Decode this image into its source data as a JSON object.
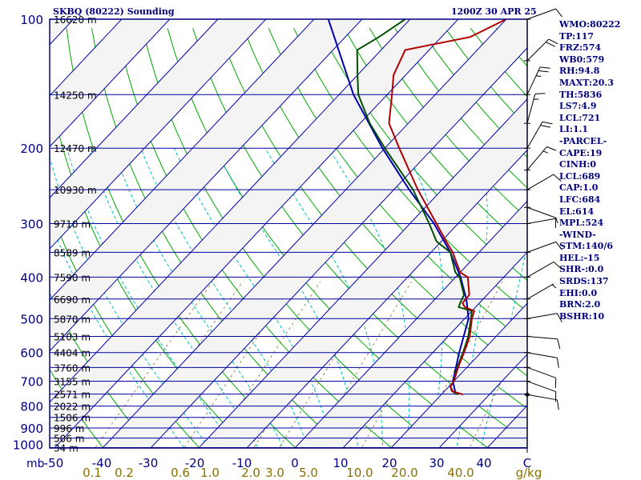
{
  "header": {
    "station": "SKBQ (80222) Sounding",
    "time": "1200Z 30 APR 25"
  },
  "stats": [
    "WMO:80222",
    "TP:117",
    "FRZ:574",
    "WB0:579",
    "RH:94.8",
    "MAXT:20.3",
    "TH:5836",
    "LS7:4.9",
    "LCL:721",
    "LI:1.1",
    "-PARCEL-",
    "CAPE:19",
    "CINH:0",
    "LCL:689",
    "CAP:1.0",
    "LFC:684",
    "EL:614",
    "MPL:524",
    "-WIND-",
    "STM:140/6",
    "HEL:-15",
    "SHR-:0.0",
    "SRDS:137",
    "EHI:0.0",
    "BRN:2.0",
    "BSHR:10"
  ],
  "colors": {
    "frame": "#000080",
    "isobar": "#0000a0",
    "isotherm": "#0000b0",
    "dry_adiabat": "#00aa00",
    "moist_adiabat": "#00c0c0",
    "mixing_ratio": "#9a8a50",
    "temperature": "#b00000",
    "dewpoint": "#005000",
    "parcel": "#0000b0",
    "axis_labels": "#000080",
    "mixing_labels": "#8a7000"
  },
  "chart_data": {
    "type": "line",
    "title": "SKBQ (80222) Sounding",
    "subtitle": "1200Z 30 APR 25",
    "pressure_ticks": [
      "100",
      "200",
      "300",
      "400",
      "500",
      "600",
      "700",
      "800",
      "900",
      "1000"
    ],
    "pressure_unit": "mb",
    "temperature_ticks": [
      "-50",
      "-40",
      "-30",
      "-20",
      "-10",
      "0",
      "10",
      "20",
      "30",
      "40"
    ],
    "temperature_unit": "C",
    "mixing_ratio_ticks": [
      "0.1",
      "0.2",
      "0.6",
      "1.0",
      "2.0",
      "3.0",
      "5.0",
      "10.0",
      "20.0",
      "40.0"
    ],
    "mixing_ratio_unit": "g/kg",
    "height_labels": [
      {
        "p": 100,
        "label": "16620 m"
      },
      {
        "p": 150,
        "label": "14250 m"
      },
      {
        "p": 200,
        "label": "12470 m"
      },
      {
        "p": 250,
        "label": "10930 m"
      },
      {
        "p": 300,
        "label": "9710 m"
      },
      {
        "p": 350,
        "label": "8589 m"
      },
      {
        "p": 400,
        "label": "7590 m"
      },
      {
        "p": 450,
        "label": "6690 m"
      },
      {
        "p": 500,
        "label": "5870 m"
      },
      {
        "p": 550,
        "label": "5103 m"
      },
      {
        "p": 600,
        "label": "4404 m"
      },
      {
        "p": 650,
        "label": "3760 m"
      },
      {
        "p": 700,
        "label": "3155 m"
      },
      {
        "p": 750,
        "label": "2571 m"
      },
      {
        "p": 800,
        "label": "2022 m"
      },
      {
        "p": 850,
        "label": "1506 m"
      },
      {
        "p": 900,
        "label": "996 m"
      },
      {
        "p": 950,
        "label": "506 m"
      },
      {
        "p": 1000,
        "label": "34 m"
      }
    ],
    "temperature_profile": [
      [
        752,
        24.5
      ],
      [
        738,
        21.5
      ],
      [
        720,
        20.3
      ],
      [
        700,
        20.0
      ],
      [
        650,
        18.2
      ],
      [
        600,
        16.5
      ],
      [
        550,
        14.5
      ],
      [
        500,
        11.5
      ],
      [
        480,
        10.5
      ],
      [
        470,
        7.8
      ],
      [
        460,
        6.5
      ],
      [
        440,
        6.3
      ],
      [
        400,
        2.5
      ],
      [
        390,
        0.0
      ],
      [
        350,
        -5.5
      ],
      [
        330,
        -9.0
      ],
      [
        300,
        -14.5
      ],
      [
        250,
        -25.0
      ],
      [
        200,
        -37.0
      ],
      [
        175,
        -44.0
      ],
      [
        150,
        -49.0
      ],
      [
        135,
        -52.5
      ],
      [
        118,
        -55.0
      ],
      [
        110,
        -44.0
      ],
      [
        100,
        -40.0
      ]
    ],
    "dewpoint_profile": [
      [
        752,
        23.5
      ],
      [
        740,
        21.8
      ],
      [
        720,
        20.3
      ],
      [
        700,
        20.0
      ],
      [
        650,
        18.0
      ],
      [
        600,
        16.3
      ],
      [
        550,
        14.2
      ],
      [
        500,
        11.3
      ],
      [
        480,
        10.0
      ],
      [
        470,
        6.5
      ],
      [
        460,
        6.0
      ],
      [
        440,
        5.2
      ],
      [
        400,
        0.8
      ],
      [
        390,
        -1.0
      ],
      [
        350,
        -6.0
      ],
      [
        330,
        -11.0
      ],
      [
        300,
        -16.0
      ],
      [
        250,
        -26.0
      ],
      [
        200,
        -40.0
      ],
      [
        175,
        -48.0
      ],
      [
        150,
        -56.0
      ],
      [
        135,
        -60.0
      ],
      [
        118,
        -65.0
      ],
      [
        110,
        -63.0
      ],
      [
        100,
        -61.0
      ]
    ],
    "parcel_profile": [
      [
        752,
        23.0
      ],
      [
        700,
        19.8
      ],
      [
        600,
        15.5
      ],
      [
        500,
        10.8
      ],
      [
        450,
        6.5
      ],
      [
        400,
        1.0
      ],
      [
        350,
        -6.0
      ],
      [
        300,
        -15.0
      ],
      [
        250,
        -26.8
      ],
      [
        200,
        -40.5
      ],
      [
        150,
        -57.0
      ],
      [
        100,
        -77.0
      ]
    ],
    "wind_barbs": [
      {
        "p": 100,
        "dir": 70,
        "kt": 10
      },
      {
        "p": 125,
        "dir": 45,
        "kt": 20
      },
      {
        "p": 150,
        "dir": 25,
        "kt": 25
      },
      {
        "p": 175,
        "dir": 15,
        "kt": 15
      },
      {
        "p": 200,
        "dir": 30,
        "kt": 20
      },
      {
        "p": 225,
        "dir": 40,
        "kt": 15
      },
      {
        "p": 250,
        "dir": 60,
        "kt": 10
      },
      {
        "p": 275,
        "dir": 110,
        "kt": 10
      },
      {
        "p": 300,
        "dir": 80,
        "kt": 5
      },
      {
        "p": 350,
        "dir": 70,
        "kt": 10
      },
      {
        "p": 400,
        "dir": 60,
        "kt": 10
      },
      {
        "p": 450,
        "dir": 60,
        "kt": 5
      },
      {
        "p": 500,
        "dir": 80,
        "kt": 10
      },
      {
        "p": 550,
        "dir": 95,
        "kt": 10
      },
      {
        "p": 600,
        "dir": 100,
        "kt": 10
      },
      {
        "p": 650,
        "dir": 110,
        "kt": 10
      },
      {
        "p": 700,
        "dir": 110,
        "kt": 10
      },
      {
        "p": 752,
        "dir": 100,
        "kt": 10
      }
    ]
  }
}
